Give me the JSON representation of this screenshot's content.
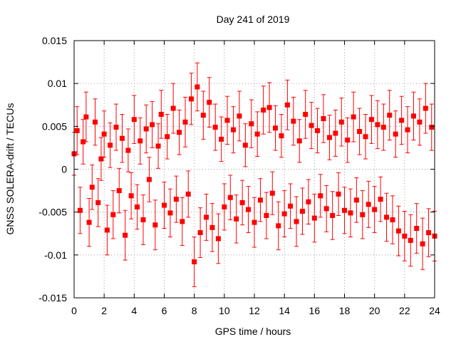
{
  "chart_data": {
    "type": "scatter",
    "title": "Day 241 of 2019",
    "xlabel": "GPS time / hours",
    "ylabel": "GNSS SOLERA-drift / TECUs",
    "xlim": [
      0,
      24
    ],
    "ylim": [
      -0.015,
      0.015
    ],
    "x_ticks": [
      0,
      2,
      4,
      6,
      8,
      10,
      12,
      14,
      16,
      18,
      20,
      22,
      24
    ],
    "y_ticks": [
      -0.015,
      -0.01,
      -0.005,
      0,
      0.005,
      0.01,
      0.015
    ],
    "x_tick_labels": [
      "0",
      "2",
      "4",
      "6",
      "8",
      "10",
      "12",
      "14",
      "16",
      "18",
      "20",
      "22",
      "24"
    ],
    "y_tick_labels": [
      "-0.015",
      "-0.01",
      "-0.005",
      "0",
      "0.005",
      "0.01",
      "0.015"
    ],
    "grid": true,
    "series_color": "#ff0000",
    "series": [
      {
        "error_bars": true,
        "x": [
          0.0,
          0.2,
          0.4,
          0.6,
          0.8,
          1.0,
          1.2,
          1.4,
          1.6,
          1.8,
          2.0,
          2.2,
          2.4,
          2.6,
          2.8,
          3.0,
          3.2,
          3.4,
          3.6,
          3.8,
          4.0,
          4.2,
          4.4,
          4.6,
          4.8,
          5.0,
          5.2,
          5.4,
          5.6,
          5.8,
          6.0,
          6.2,
          6.4,
          6.6,
          6.8,
          7.0,
          7.2,
          7.4,
          7.6,
          7.8,
          8.0,
          8.2,
          8.4,
          8.6,
          8.8,
          9.0,
          9.2,
          9.4,
          9.6,
          9.8,
          10.0,
          10.2,
          10.4,
          10.6,
          10.8,
          11.0,
          11.2,
          11.4,
          11.6,
          11.8,
          12.0,
          12.2,
          12.4,
          12.6,
          12.8,
          13.0,
          13.2,
          13.4,
          13.6,
          13.8,
          14.0,
          14.2,
          14.4,
          14.6,
          14.8,
          15.0,
          15.2,
          15.4,
          15.6,
          15.8,
          16.0,
          16.2,
          16.4,
          16.6,
          16.8,
          17.0,
          17.2,
          17.4,
          17.6,
          17.8,
          18.0,
          18.2,
          18.4,
          18.6,
          18.8,
          19.0,
          19.2,
          19.4,
          19.6,
          19.8,
          20.0,
          20.2,
          20.4,
          20.6,
          20.8,
          21.0,
          21.2,
          21.4,
          21.6,
          21.8,
          22.0,
          22.2,
          22.4,
          22.6,
          22.8,
          23.0,
          23.2,
          23.4,
          23.6,
          23.8,
          24.0
        ],
        "y": [
          0.0018,
          0.0045,
          -0.0048,
          0.0032,
          0.0061,
          -0.0062,
          -0.0021,
          0.0055,
          -0.0039,
          0.0012,
          0.0041,
          -0.0071,
          0.0028,
          -0.0053,
          0.0049,
          -0.0025,
          0.0036,
          -0.0077,
          0.0022,
          -0.0031,
          0.0058,
          -0.0044,
          0.0033,
          -0.0059,
          0.0047,
          -0.0012,
          0.0052,
          -0.0065,
          0.0027,
          0.0064,
          -0.0042,
          0.0038,
          -0.0051,
          0.0071,
          -0.0035,
          0.0043,
          -0.0061,
          0.0055,
          -0.0029,
          0.0082,
          -0.0108,
          0.0096,
          -0.0074,
          0.0063,
          -0.0056,
          0.0078,
          -0.0068,
          0.0049,
          -0.0081,
          0.0035,
          -0.0044,
          0.0057,
          -0.0033,
          0.0046,
          -0.0058,
          0.0062,
          -0.0039,
          0.0028,
          -0.0047,
          0.0053,
          -0.0062,
          0.0041,
          -0.0036,
          0.0069,
          -0.0054,
          0.0072,
          -0.0028,
          0.0048,
          -0.0066,
          0.0039,
          -0.0052,
          0.0075,
          -0.0043,
          0.0056,
          -0.0061,
          0.0033,
          -0.0049,
          0.0064,
          -0.0038,
          0.0051,
          -0.0057,
          0.0045,
          -0.0031,
          0.0059,
          -0.0046,
          0.0037,
          -0.0054,
          0.0042,
          -0.0029,
          0.0055,
          -0.0048,
          0.0034,
          -0.0051,
          0.0061,
          -0.0036,
          0.0044,
          -0.0053,
          0.0038,
          -0.0041,
          0.0058,
          -0.0047,
          0.0052,
          -0.0035,
          0.0049,
          -0.0056,
          0.0063,
          -0.0059,
          0.0041,
          -0.0072,
          0.0057,
          -0.0078,
          0.0046,
          -0.0083,
          0.0062,
          -0.0069,
          0.0055,
          -0.0087,
          0.0071,
          -0.0074,
          0.0049,
          -0.0078
        ],
        "err": [
          0.0025,
          0.0028,
          0.0027,
          0.0026,
          0.0029,
          0.0028,
          0.0026,
          0.0027,
          0.0028,
          0.0025,
          0.0027,
          0.0029,
          0.0026,
          0.0028,
          0.0027,
          0.0026,
          0.0028,
          0.0029,
          0.0025,
          0.0027,
          0.0028,
          0.0026,
          0.0027,
          0.0029,
          0.0028,
          0.0026,
          0.0027,
          0.0029,
          0.0026,
          0.0028,
          0.0027,
          0.0026,
          0.0028,
          0.0029,
          0.0027,
          0.0026,
          0.0028,
          0.0029,
          0.0027,
          0.003,
          0.0029,
          0.0028,
          0.0029,
          0.0028,
          0.0027,
          0.0029,
          0.0028,
          0.0027,
          0.0029,
          0.0026,
          0.0027,
          0.0028,
          0.0026,
          0.0027,
          0.0028,
          0.0029,
          0.0026,
          0.0025,
          0.0027,
          0.0028,
          0.0029,
          0.0026,
          0.0025,
          0.0028,
          0.0027,
          0.0029,
          0.0025,
          0.0026,
          0.0028,
          0.0025,
          0.0027,
          0.0029,
          0.0026,
          0.0028,
          0.0029,
          0.0025,
          0.0027,
          0.0028,
          0.0026,
          0.0027,
          0.0028,
          0.0026,
          0.0025,
          0.0028,
          0.0027,
          0.0026,
          0.0028,
          0.0027,
          0.0025,
          0.0028,
          0.0027,
          0.0026,
          0.0028,
          0.0029,
          0.0026,
          0.0027,
          0.0028,
          0.0026,
          0.0027,
          0.0028,
          0.0027,
          0.0028,
          0.0026,
          0.0027,
          0.0028,
          0.0029,
          0.0028,
          0.0027,
          0.0029,
          0.0028,
          0.0029,
          0.0027,
          0.003,
          0.0028,
          0.0029,
          0.0027,
          0.003,
          0.0029,
          0.0028,
          0.0027,
          0.0029
        ]
      }
    ]
  }
}
